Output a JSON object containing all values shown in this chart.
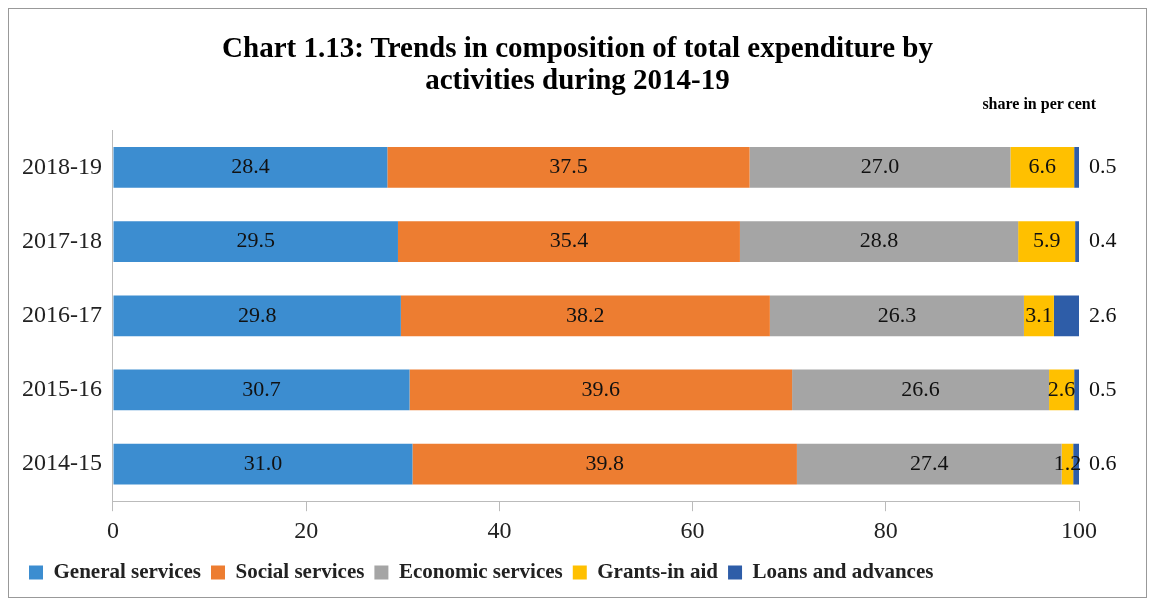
{
  "chart_data": {
    "type": "bar",
    "orientation": "horizontal",
    "stacked": true,
    "title": "Chart 1.13: Trends in composition of total expenditure by activities during 2014-19",
    "subtitle": "share in per cent",
    "categories": [
      "2018-19",
      "2017-18",
      "2016-17",
      "2015-16",
      "2014-15"
    ],
    "series": [
      {
        "name": "General services",
        "color": "#3c8dd0",
        "values": [
          28.4,
          29.5,
          29.8,
          30.7,
          31.0
        ],
        "value_labels": [
          "28.4",
          "29.5",
          "29.8",
          "30.7",
          "31.0"
        ]
      },
      {
        "name": "Social services",
        "color": "#ed7d31",
        "values": [
          37.5,
          35.4,
          38.2,
          39.6,
          39.8
        ],
        "value_labels": [
          "37.5",
          "35.4",
          "38.2",
          "39.6",
          "39.8"
        ]
      },
      {
        "name": "Economic services",
        "color": "#a5a5a5",
        "values": [
          27.0,
          28.8,
          26.3,
          26.6,
          27.4
        ],
        "value_labels": [
          "27.0",
          "28.8",
          "26.3",
          "26.6",
          "27.4"
        ]
      },
      {
        "name": "Grants-in aid",
        "color": "#ffc000",
        "values": [
          6.6,
          5.9,
          3.1,
          2.6,
          1.2
        ],
        "value_labels": [
          "6.6",
          "5.9",
          "3.1",
          "2.6",
          "1.2"
        ]
      },
      {
        "name": "Loans and advances",
        "color": "#2e5da8",
        "values": [
          0.5,
          0.4,
          2.6,
          0.5,
          0.6
        ],
        "value_labels": [
          "0.5",
          "0.4",
          "2.6",
          "0.5",
          "0.6"
        ]
      }
    ],
    "xlim": [
      0,
      100
    ],
    "xticks": [
      0,
      20,
      40,
      60,
      80,
      100
    ],
    "grid": false,
    "legend": "bottom"
  }
}
